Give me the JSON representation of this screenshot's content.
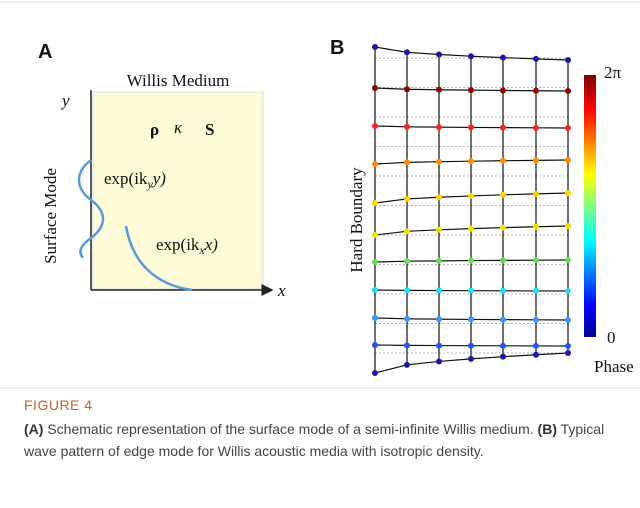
{
  "figure": {
    "panel_a": {
      "letter": "A",
      "title": "Willis Medium",
      "symbols": [
        "ρ",
        "κ",
        "S"
      ],
      "y_axis": "y",
      "x_axis": "x",
      "side_label": "Surface Mode",
      "wave_y": {
        "prefix": "exp(ik",
        "subscript": "y",
        "suffix": "y)"
      },
      "wave_x": {
        "prefix": "exp(ik",
        "subscript": "x",
        "suffix": "x)"
      }
    },
    "panel_b": {
      "letter": "B",
      "side_label": "Hard Boundary",
      "colorbar_top": "2π",
      "colorbar_bottom": "0",
      "colorbar_label": "Phase"
    },
    "caption": {
      "label": "FIGURE 4",
      "a_tag": "(A)",
      "a_text": " Schematic representation of the surface mode of a semi-infinite Willis medium. ",
      "b_tag": "(B)",
      "b_text": " Typical wave pattern of edge mode for Willis acoustic media with isotropic density."
    }
  }
}
